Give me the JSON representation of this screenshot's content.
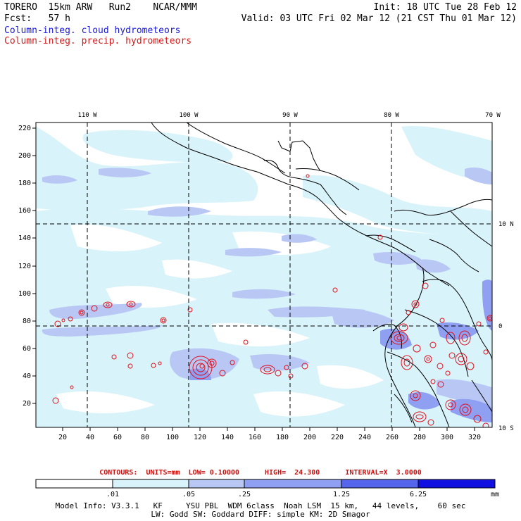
{
  "header": {
    "left_line1": "TORERO  15km ARW   Run2    NCAR/MMM",
    "left_line2": "Fcst:   57 h",
    "right_line1": "Init: 18 UTC Tue 28 Feb 12",
    "right_line2": "Valid: 03 UTC Fri 02 Mar 12 (21 CST Thu 01 Mar 12)",
    "legend_cloud": "Column-integ. cloud hydrometeors",
    "legend_precip": "Column-integ. precip. hydrometeors"
  },
  "map": {
    "top_lon_labels": [
      "110 W",
      "100 W",
      "90 W",
      "80 W",
      "70 W"
    ],
    "right_lat_labels": [
      "10 N",
      "0",
      "10 S"
    ],
    "y_ticks": [
      "220",
      "200",
      "180",
      "160",
      "140",
      "120",
      "100",
      "80",
      "60",
      "40",
      "20"
    ],
    "x_ticks": [
      "20",
      "40",
      "60",
      "80",
      "100",
      "120",
      "140",
      "160",
      "180",
      "200",
      "220",
      "240",
      "260",
      "280",
      "300",
      "320"
    ],
    "colors": {
      "land_line": "#000000",
      "grid": "#000000",
      "light_cloud": "#d9f3fb",
      "medium_cloud": "#b9c7f5",
      "dense_cloud": "#7f8ff0",
      "precip_contour": "#e0101a"
    }
  },
  "contour_info": {
    "text": "CONTOURS:  UNITS=mm  LOW= 0.10000      HIGH=  24.300      INTERVAL=X  3.0000"
  },
  "colorbar": {
    "labels": [
      ".01",
      ".05",
      ".25",
      "1.25",
      "6.25"
    ],
    "unit": "mm",
    "colors": [
      "#ffffff",
      "#d9f3fb",
      "#b9c7f5",
      "#8f9ff2",
      "#5565ec",
      "#2a3ae4",
      "#1010e0"
    ]
  },
  "model_info": {
    "line1": "Model Info: V3.3.1   KF     YSU PBL  WDM 6class  Noah LSM  15 km,   44 levels,    60 sec",
    "line2": "LW: Godd SW: Goddard DIFF: simple KM: 2D Smagor"
  }
}
